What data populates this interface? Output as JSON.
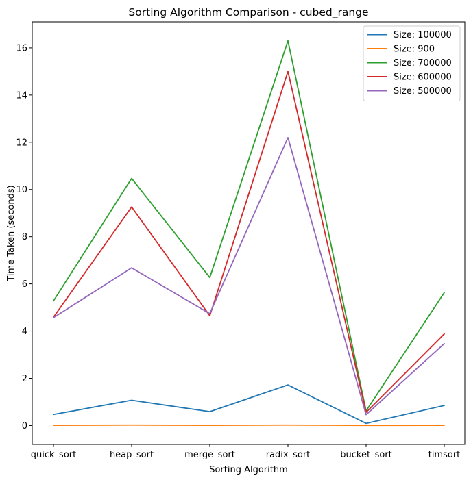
{
  "chart_data": {
    "type": "line",
    "title": "Sorting Algorithm Comparison - cubed_range",
    "xlabel": "Sorting Algorithm",
    "ylabel": "Time Taken (seconds)",
    "categories": [
      "quick_sort",
      "heap_sort",
      "merge_sort",
      "radix_sort",
      "bucket_sort",
      "timsort"
    ],
    "ylim": [
      -0.8,
      17.1
    ],
    "yticks": [
      0,
      2,
      4,
      6,
      8,
      10,
      12,
      14,
      16
    ],
    "grid": false,
    "legend_position": "top-right",
    "series": [
      {
        "name": "Size: 100000",
        "color": "#1f77b4",
        "values": [
          0.47,
          1.07,
          0.59,
          1.72,
          0.09,
          0.85
        ]
      },
      {
        "name": "Size: 900",
        "color": "#ff7f0e",
        "values": [
          0.01,
          0.02,
          0.01,
          0.02,
          0.005,
          0.01
        ]
      },
      {
        "name": "Size: 700000",
        "color": "#2ca02c",
        "values": [
          5.28,
          10.47,
          6.27,
          16.3,
          0.62,
          5.63
        ]
      },
      {
        "name": "Size: 600000",
        "color": "#d62728",
        "values": [
          4.59,
          9.26,
          4.65,
          15.0,
          0.56,
          3.88
        ]
      },
      {
        "name": "Size: 500000",
        "color": "#9467bd",
        "values": [
          4.57,
          6.68,
          4.74,
          12.2,
          0.46,
          3.47
        ]
      }
    ]
  }
}
